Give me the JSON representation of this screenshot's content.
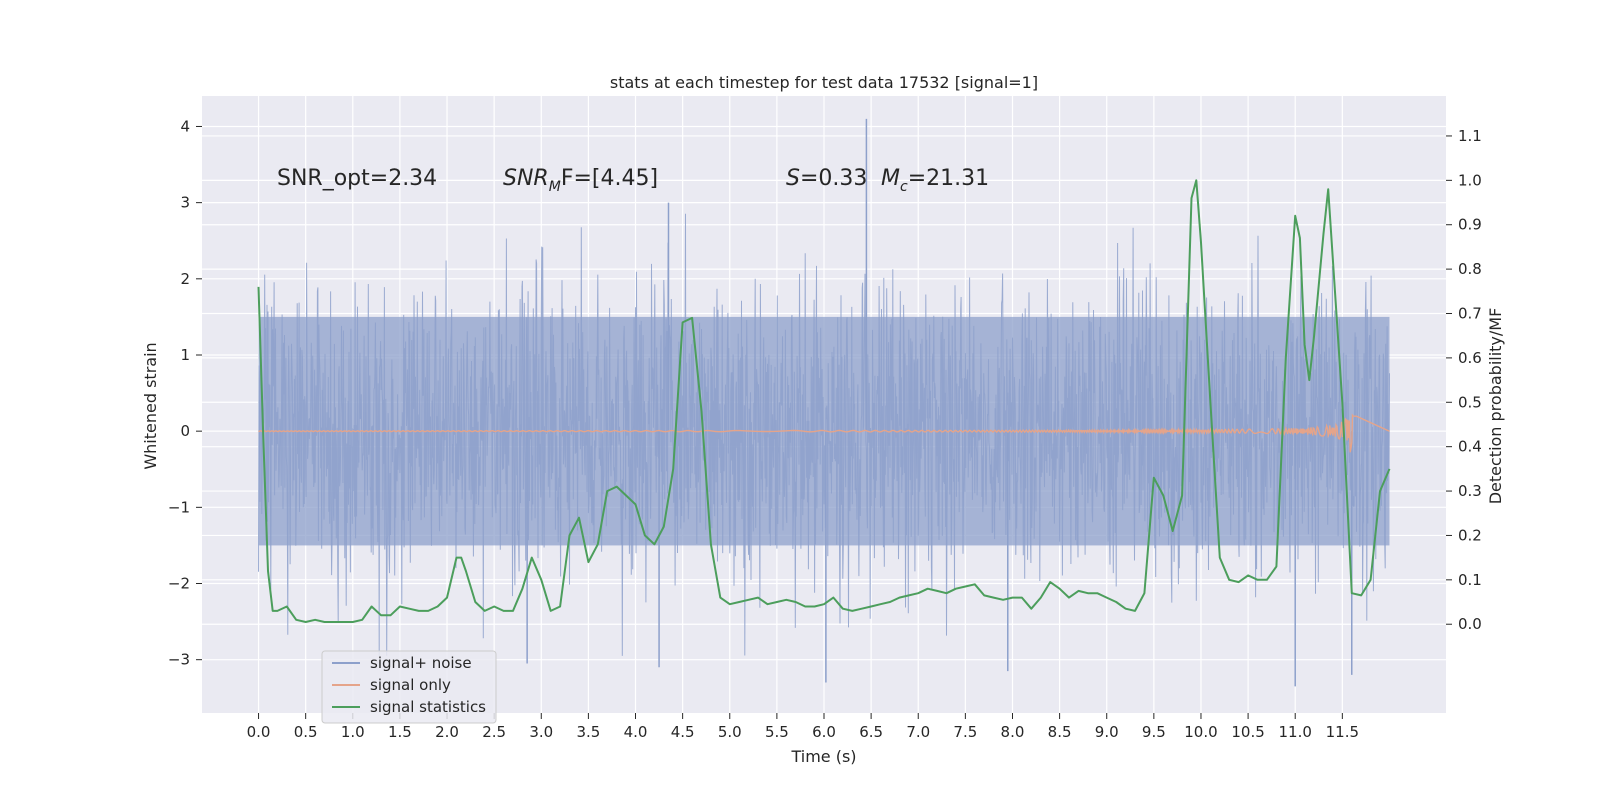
{
  "chart_data": {
    "type": "line",
    "title": "stats at each timestep for test data 17532 [signal=1]",
    "xlabel": "Time (s)",
    "ylabel_left": "Whitened strain",
    "ylabel_right": "Detection probability/MF",
    "xlim": [
      -0.6,
      12.6
    ],
    "ylim_left": [
      -3.7,
      4.4
    ],
    "ylim_right": [
      -0.2,
      1.19
    ],
    "x_ticks": [
      "0.0",
      "0.5",
      "1.0",
      "1.5",
      "2.0",
      "2.5",
      "3.0",
      "3.5",
      "4.0",
      "4.5",
      "5.0",
      "5.5",
      "6.0",
      "6.5",
      "7.0",
      "7.5",
      "8.0",
      "8.5",
      "9.0",
      "9.5",
      "10.0",
      "10.5",
      "11.0",
      "11.5"
    ],
    "x_tick_values": [
      0,
      0.5,
      1,
      1.5,
      2,
      2.5,
      3,
      3.5,
      4,
      4.5,
      5,
      5.5,
      6,
      6.5,
      7,
      7.5,
      8,
      8.5,
      9,
      9.5,
      10,
      10.5,
      11,
      11.5
    ],
    "y_left_ticks": [
      "−3",
      "−2",
      "−1",
      "0",
      "1",
      "2",
      "3",
      "4"
    ],
    "y_left_tick_values": [
      -3,
      -2,
      -1,
      0,
      1,
      2,
      3,
      4
    ],
    "y_right_ticks": [
      "0.0",
      "0.1",
      "0.2",
      "0.3",
      "0.4",
      "0.5",
      "0.6",
      "0.7",
      "0.8",
      "0.9",
      "1.0",
      "1.1"
    ],
    "y_right_tick_values": [
      0,
      0.1,
      0.2,
      0.3,
      0.4,
      0.5,
      0.6,
      0.7,
      0.8,
      0.9,
      1.0,
      1.1
    ],
    "annotations": {
      "snr_opt": "SNR_opt=2.34",
      "snr_mf_pre": "SNR",
      "snr_mf_sub": "M",
      "snr_mf_post": "F=[4.45]",
      "s_pre": "S",
      "s_post": "=0.33",
      "mc_pre": "M",
      "mc_sub": "c",
      "mc_post": "=21.31"
    },
    "legend": {
      "location": "lower-left",
      "entries": [
        "signal+ noise",
        "signal only",
        "signal statistics"
      ]
    },
    "series": [
      {
        "name": "signal+ noise",
        "axis": "left",
        "color": "#8da0cb",
        "kind": "noise",
        "x_range": [
          0.0,
          12.0
        ],
        "typical_band": [
          -1.5,
          1.5
        ],
        "notable_spikes": [
          {
            "x": 6.45,
            "y": 4.1
          },
          {
            "x": 4.35,
            "y": 3.0
          },
          {
            "x": 11.0,
            "y": -3.35
          },
          {
            "x": 6.02,
            "y": -3.3
          },
          {
            "x": 11.6,
            "y": -3.2
          },
          {
            "x": 2.85,
            "y": -3.05
          },
          {
            "x": 4.25,
            "y": -3.1
          },
          {
            "x": 7.95,
            "y": -3.15
          }
        ]
      },
      {
        "name": "signal only",
        "axis": "left",
        "color": "#e5a48a",
        "kind": "chirp",
        "x_range": [
          0.0,
          11.65
        ],
        "peak_x": 11.6,
        "peak_amplitude": 0.45
      },
      {
        "name": "signal statistics",
        "axis": "right",
        "color": "#4c9e5c",
        "kind": "line",
        "x": [
          0.0,
          0.05,
          0.1,
          0.15,
          0.2,
          0.3,
          0.4,
          0.5,
          0.6,
          0.7,
          0.8,
          0.9,
          1.0,
          1.1,
          1.2,
          1.3,
          1.4,
          1.5,
          1.6,
          1.7,
          1.8,
          1.9,
          2.0,
          2.1,
          2.15,
          2.2,
          2.3,
          2.4,
          2.5,
          2.6,
          2.7,
          2.8,
          2.9,
          3.0,
          3.1,
          3.2,
          3.3,
          3.4,
          3.5,
          3.6,
          3.7,
          3.8,
          3.9,
          4.0,
          4.1,
          4.2,
          4.3,
          4.4,
          4.5,
          4.6,
          4.7,
          4.8,
          4.9,
          5.0,
          5.1,
          5.2,
          5.3,
          5.4,
          5.5,
          5.6,
          5.7,
          5.8,
          5.9,
          6.0,
          6.1,
          6.2,
          6.3,
          6.4,
          6.5,
          6.6,
          6.7,
          6.8,
          6.9,
          7.0,
          7.1,
          7.2,
          7.3,
          7.4,
          7.5,
          7.6,
          7.7,
          7.8,
          7.9,
          8.0,
          8.1,
          8.2,
          8.3,
          8.4,
          8.5,
          8.6,
          8.7,
          8.8,
          8.9,
          9.0,
          9.1,
          9.2,
          9.3,
          9.4,
          9.45,
          9.5,
          9.6,
          9.7,
          9.8,
          9.9,
          9.95,
          10.0,
          10.1,
          10.2,
          10.3,
          10.4,
          10.5,
          10.6,
          10.7,
          10.8,
          10.9,
          11.0,
          11.05,
          11.1,
          11.15,
          11.2,
          11.3,
          11.35,
          11.4,
          11.5,
          11.6,
          11.7,
          11.8,
          11.9,
          12.0
        ],
        "values": [
          0.76,
          0.42,
          0.12,
          0.03,
          0.03,
          0.04,
          0.01,
          0.005,
          0.01,
          0.005,
          0.005,
          0.005,
          0.005,
          0.01,
          0.04,
          0.02,
          0.02,
          0.04,
          0.035,
          0.03,
          0.03,
          0.04,
          0.06,
          0.15,
          0.15,
          0.12,
          0.05,
          0.03,
          0.04,
          0.03,
          0.03,
          0.08,
          0.15,
          0.1,
          0.03,
          0.04,
          0.2,
          0.24,
          0.14,
          0.18,
          0.3,
          0.31,
          0.29,
          0.27,
          0.2,
          0.18,
          0.22,
          0.35,
          0.68,
          0.69,
          0.48,
          0.18,
          0.06,
          0.045,
          0.05,
          0.055,
          0.06,
          0.045,
          0.05,
          0.055,
          0.05,
          0.04,
          0.04,
          0.045,
          0.06,
          0.035,
          0.03,
          0.035,
          0.04,
          0.045,
          0.05,
          0.06,
          0.065,
          0.07,
          0.08,
          0.075,
          0.07,
          0.08,
          0.085,
          0.09,
          0.065,
          0.06,
          0.055,
          0.06,
          0.06,
          0.035,
          0.06,
          0.095,
          0.08,
          0.06,
          0.075,
          0.07,
          0.07,
          0.06,
          0.05,
          0.035,
          0.03,
          0.07,
          0.2,
          0.33,
          0.29,
          0.21,
          0.29,
          0.96,
          1.0,
          0.86,
          0.5,
          0.15,
          0.1,
          0.095,
          0.11,
          0.1,
          0.1,
          0.13,
          0.6,
          0.92,
          0.87,
          0.63,
          0.55,
          0.65,
          0.88,
          0.98,
          0.82,
          0.5,
          0.07,
          0.065,
          0.1,
          0.3,
          0.35
        ]
      }
    ]
  }
}
